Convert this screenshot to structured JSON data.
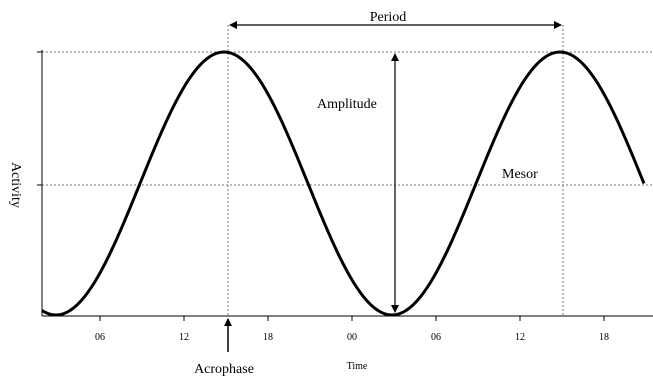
{
  "diagram": {
    "y_label": "Activity",
    "x_label": "Time",
    "x_ticks": [
      "06",
      "12",
      "18",
      "00",
      "06",
      "12",
      "18"
    ],
    "annotations": {
      "period": "Period",
      "amplitude": "Amplitude",
      "mesor": "Mesor",
      "acrophase": "Acrophase"
    },
    "curve": {
      "shape": "cosine",
      "period_hours": 24,
      "acrophase_hour": 15,
      "x_start_hour": 0,
      "x_end_hour": 48
    }
  }
}
